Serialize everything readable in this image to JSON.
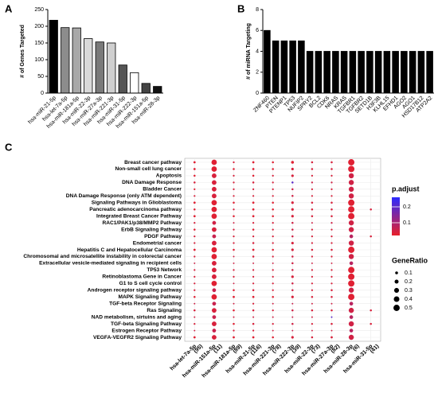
{
  "chart_data": [
    {
      "type": "bar",
      "panel": "A",
      "ylabel": "# of Genes Targeted",
      "categories": [
        "hsa-miR-21-5p",
        "hsa-let-7a-5p",
        "hsa-miR-181a-5p",
        "hsa-miR-22-3p",
        "hsa-miR-27a-3p",
        "hsa-miR-221-3p",
        "hsa-miR-31-5p",
        "hsa-miR-222-3p",
        "hsa-miR-151a-5p",
        "hsa-miR-28-3p"
      ],
      "values": [
        218,
        196,
        195,
        163,
        153,
        150,
        84,
        61,
        29,
        20
      ],
      "colors": [
        "#000000",
        "#8c8c8c",
        "#a8a8a8",
        "#d9d9d9",
        "#7a7a7a",
        "#cfcfcf",
        "#555555",
        "#ffffff",
        "#444444",
        "#111111"
      ],
      "ylim": [
        0,
        250
      ],
      "yticks": [
        0,
        50,
        100,
        150,
        200,
        250
      ]
    },
    {
      "type": "bar",
      "panel": "B",
      "ylabel": "# of miRNA Targeting",
      "categories": [
        "ZNF460",
        "PTEN",
        "PTENP1",
        "TP53",
        "NUFIP2",
        "SPRY2",
        "BCL2",
        "CDK6",
        "NRAS",
        "KRAS",
        "TGFBR1",
        "TGFBR2",
        "SETD1B",
        "H3F3B",
        "KLHL15",
        "EFHD1",
        "AGO2",
        "AGO1",
        "HSD17B12",
        "ATP2A2"
      ],
      "values": [
        6,
        5,
        5,
        5,
        5,
        4,
        4,
        4,
        4,
        4,
        4,
        4,
        4,
        4,
        4,
        4,
        4,
        4,
        4,
        4
      ],
      "colors": [
        "#000000"
      ],
      "ylim": [
        0,
        8
      ],
      "yticks": [
        0,
        2,
        4,
        6,
        8
      ]
    },
    {
      "type": "dot",
      "panel": "C",
      "rows": [
        "Breast cancer pathway",
        "Non-small cell lung cancer",
        "Apoptosis",
        "DNA Damage Response",
        "Bladder Cancer",
        "DNA Damage Response (only ATM dependent)",
        "Signaling Pathways in Glioblastoma",
        "Pancreatic adenocarcinoma pathway",
        "Integrated Breast Cancer Pathway",
        "RAC1/PAK1/p38/MMP2 Pathway",
        "ErbB Signaling Pathway",
        "PDGF Pathway",
        "Endometrial cancer",
        "Hepatitis C and Hepatocellular Carcinoma",
        "Chromosomal and microsatellite instability in colorectal cancer",
        "Extracellular vesicle-mediated signaling in recipient cells",
        "TP53 Network",
        "Retinoblastoma Gene in Cancer",
        "G1 to S cell cycle control",
        "Androgen receptor signaling pathway",
        "MAPK Signaling Pathway",
        "TGF-beta Receptor Signaling",
        "Ras Signaling",
        "NAD metabolism, sirtuins and aging",
        "TGF-beta Signaling Pathway",
        "Estrogen Receptor Pathway",
        "VEGFA-VEGFR2 Signaling Pathway"
      ],
      "columns": [
        "hsa-let-7a-5p",
        "hsa-miR-151a-5p",
        "hsa-miR-181a-5p",
        "hsa-miR-21-5p",
        "hsa-miR-221-3p",
        "hsa-miR-222-3p",
        "hsa-miR-22-3p",
        "hsa-miR-27a-3p",
        "hsa-miR-28-3p",
        "hsa-miR-31-5p"
      ],
      "column_counts": [
        "(95)",
        "(11)",
        "(89)",
        "(116)",
        "(78)",
        "(39)",
        "(73)",
        "(82)",
        "(6)",
        "(41)"
      ],
      "gene_ratio": [
        [
          0.06,
          0.06,
          0.05,
          0.05,
          0.04,
          0.04,
          0.06,
          0.05,
          0.06,
          0.04,
          0.05,
          0.04,
          0.04,
          0.06,
          0.04,
          0.03,
          0.04,
          0.04,
          0.04,
          0.04,
          0.05,
          0.03,
          0.05,
          0.03,
          0.04,
          0.03,
          0.06
        ],
        [
          0.36,
          0.36,
          0.27,
          0.27,
          0.27,
          0.27,
          0.36,
          0.36,
          0.36,
          0.18,
          0.27,
          0.18,
          0.27,
          0.36,
          0.36,
          0.27,
          0.27,
          0.27,
          0.36,
          0.18,
          0.36,
          0.18,
          0.27,
          0.18,
          0.27,
          0.18,
          0.27
        ],
        [
          0.04,
          0.05,
          0.04,
          0.04,
          0.04,
          0.04,
          0.05,
          0.04,
          0.05,
          0.03,
          0.04,
          0.04,
          0.04,
          0.05,
          0.03,
          0.03,
          0.04,
          0.04,
          0.03,
          0.05,
          0.06,
          0.03,
          0.05,
          0.03,
          0.05,
          0.04,
          0.06
        ],
        [
          0.06,
          0.06,
          0.05,
          0.05,
          0.04,
          0.04,
          0.06,
          0.06,
          0.06,
          0.04,
          0.05,
          0.04,
          0.05,
          0.06,
          0.05,
          0.03,
          0.04,
          0.04,
          0.04,
          0.05,
          0.06,
          0.04,
          0.05,
          0.03,
          0.05,
          0.04,
          0.06
        ],
        [
          0.05,
          0.05,
          0.04,
          0.04,
          0.04,
          0.04,
          0.05,
          0.05,
          0.05,
          0.04,
          0.04,
          0.04,
          0.04,
          0.05,
          0.04,
          0.03,
          0.04,
          0.04,
          0.04,
          0.04,
          0.05,
          0.03,
          0.04,
          0.03,
          0.04,
          0.03,
          0.05
        ],
        [
          0.1,
          0.08,
          0.08,
          0.05,
          0.05,
          0.05,
          0.08,
          0.08,
          0.08,
          0.05,
          0.05,
          0.05,
          0.08,
          0.08,
          0.05,
          0.05,
          0.05,
          0.08,
          0.05,
          0.05,
          0.08,
          0.03,
          0.05,
          0.03,
          0.05,
          0.03,
          0.08
        ],
        [
          0.05,
          0.05,
          0.04,
          0.04,
          0.04,
          0.04,
          0.05,
          0.05,
          0.05,
          0.03,
          0.04,
          0.04,
          0.04,
          0.05,
          0.04,
          0.03,
          0.04,
          0.04,
          0.04,
          0.04,
          0.05,
          0.03,
          0.05,
          0.03,
          0.04,
          0.03,
          0.05
        ],
        [
          0.05,
          0.05,
          0.04,
          0.04,
          0.04,
          0.04,
          0.05,
          0.05,
          0.05,
          0.04,
          0.04,
          0.04,
          0.04,
          0.05,
          0.04,
          0.03,
          0.04,
          0.04,
          0.04,
          0.05,
          0.05,
          0.03,
          0.05,
          0.03,
          0.05,
          0.03,
          0.06
        ],
        [
          0.5,
          0.5,
          0.33,
          0.33,
          0.33,
          0.33,
          0.5,
          0.5,
          0.5,
          0.33,
          0.33,
          0.17,
          0.33,
          0.5,
          0.33,
          0.17,
          0.5,
          0.5,
          0.5,
          0.33,
          0.5,
          0.17,
          0.33,
          0.17,
          0.33,
          0.17,
          0.33
        ],
        [
          null,
          null,
          null,
          null,
          null,
          null,
          null,
          0.05,
          null,
          null,
          null,
          0.05,
          null,
          null,
          null,
          null,
          null,
          null,
          null,
          null,
          null,
          null,
          0.05,
          null,
          0.05,
          null,
          null
        ]
      ],
      "p_adjust": [
        [
          0.03,
          0.03,
          0.03,
          0.04,
          0.03,
          0.04,
          0.03,
          0.03,
          0.03,
          0.04,
          0.03,
          0.04,
          0.04,
          0.03,
          0.04,
          0.05,
          0.04,
          0.04,
          0.04,
          0.04,
          0.03,
          0.05,
          0.04,
          0.05,
          0.04,
          0.05,
          0.03
        ],
        [
          0.03,
          0.03,
          0.04,
          0.04,
          0.04,
          0.04,
          0.03,
          0.03,
          0.03,
          0.05,
          0.04,
          0.06,
          0.04,
          0.03,
          0.03,
          0.04,
          0.04,
          0.04,
          0.03,
          0.06,
          0.03,
          0.06,
          0.04,
          0.06,
          0.04,
          0.06,
          0.04
        ],
        [
          0.04,
          0.03,
          0.04,
          0.04,
          0.04,
          0.04,
          0.03,
          0.04,
          0.03,
          0.05,
          0.04,
          0.04,
          0.04,
          0.03,
          0.05,
          0.05,
          0.04,
          0.04,
          0.05,
          0.03,
          0.03,
          0.05,
          0.03,
          0.05,
          0.03,
          0.04,
          0.03
        ],
        [
          0.03,
          0.03,
          0.03,
          0.04,
          0.04,
          0.04,
          0.03,
          0.03,
          0.03,
          0.04,
          0.03,
          0.04,
          0.04,
          0.03,
          0.04,
          0.05,
          0.04,
          0.04,
          0.04,
          0.04,
          0.03,
          0.04,
          0.04,
          0.05,
          0.04,
          0.04,
          0.03
        ],
        [
          0.03,
          0.03,
          0.04,
          0.04,
          0.04,
          0.04,
          0.03,
          0.03,
          0.03,
          0.04,
          0.04,
          0.04,
          0.04,
          0.03,
          0.04,
          0.05,
          0.04,
          0.04,
          0.04,
          0.04,
          0.03,
          0.05,
          0.04,
          0.05,
          0.04,
          0.05,
          0.03
        ],
        [
          0.03,
          0.04,
          0.04,
          0.2,
          0.05,
          0.05,
          0.04,
          0.04,
          0.04,
          0.05,
          0.05,
          0.05,
          0.04,
          0.04,
          0.05,
          0.05,
          0.05,
          0.04,
          0.05,
          0.05,
          0.04,
          0.06,
          0.05,
          0.06,
          0.05,
          0.06,
          0.04
        ],
        [
          0.04,
          0.04,
          0.04,
          0.05,
          0.04,
          0.04,
          0.04,
          0.04,
          0.04,
          0.05,
          0.04,
          0.04,
          0.04,
          0.04,
          0.04,
          0.05,
          0.04,
          0.04,
          0.04,
          0.04,
          0.04,
          0.05,
          0.04,
          0.05,
          0.04,
          0.05,
          0.04
        ],
        [
          0.04,
          0.04,
          0.04,
          0.05,
          0.04,
          0.04,
          0.04,
          0.04,
          0.04,
          0.05,
          0.04,
          0.04,
          0.04,
          0.04,
          0.04,
          0.05,
          0.04,
          0.04,
          0.04,
          0.04,
          0.04,
          0.05,
          0.04,
          0.2,
          0.04,
          0.05,
          0.04
        ],
        [
          0.03,
          0.03,
          0.05,
          0.05,
          0.05,
          0.05,
          0.03,
          0.03,
          0.03,
          0.05,
          0.05,
          0.08,
          0.05,
          0.03,
          0.05,
          0.08,
          0.03,
          0.03,
          0.03,
          0.05,
          0.03,
          0.08,
          0.05,
          0.08,
          0.05,
          0.08,
          0.05
        ],
        [
          null,
          null,
          null,
          null,
          null,
          null,
          null,
          0.04,
          null,
          null,
          null,
          0.04,
          null,
          null,
          null,
          null,
          null,
          null,
          null,
          null,
          null,
          null,
          0.04,
          null,
          0.04,
          null,
          null
        ]
      ],
      "color_legend_title": "p.adjust",
      "clim": [
        0.02,
        0.26
      ],
      "cticks": [
        0.1,
        0.2
      ],
      "color_low": "#e8202a",
      "color_high": "#2b2bff",
      "size_legend_title": "GeneRatio",
      "size_ticks": [
        0.1,
        0.2,
        0.3,
        0.4,
        0.5
      ]
    }
  ]
}
